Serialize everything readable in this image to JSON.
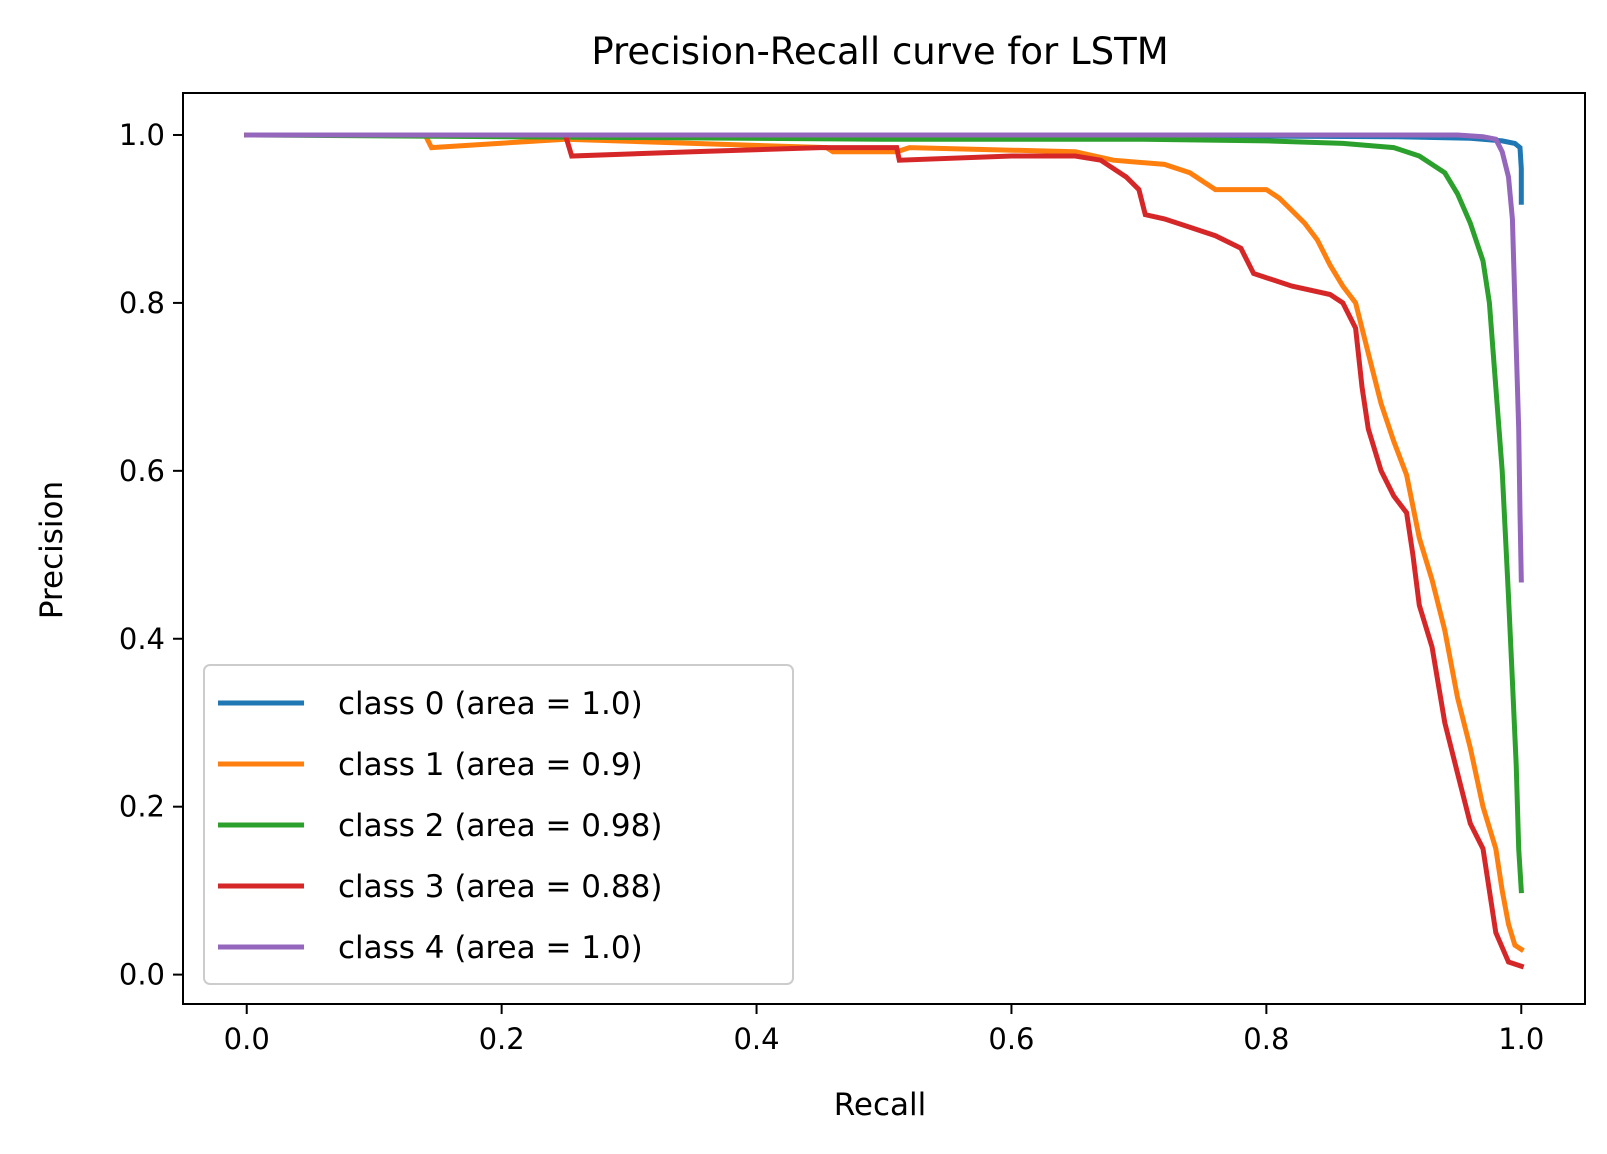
{
  "chart_data": {
    "type": "line",
    "title": "Precision-Recall curve for LSTM",
    "xlabel": "Recall",
    "ylabel": "Precision",
    "xlim": [
      -0.05,
      1.05
    ],
    "ylim": [
      -0.035,
      1.05
    ],
    "xticks": [
      0.0,
      0.2,
      0.4,
      0.6,
      0.8,
      1.0
    ],
    "xtick_labels": [
      "0.0",
      "0.2",
      "0.4",
      "0.6",
      "0.8",
      "1.0"
    ],
    "yticks": [
      0.0,
      0.2,
      0.4,
      0.6,
      0.8,
      1.0
    ],
    "ytick_labels": [
      "0.0",
      "0.2",
      "0.4",
      "0.6",
      "0.8",
      "1.0"
    ],
    "grid": false,
    "legend_position": "lower-left",
    "series": [
      {
        "name": "class 0 (area = 1.0)",
        "color": "#1f77b4",
        "points": [
          [
            0.0,
            1.0
          ],
          [
            0.6,
            1.0
          ],
          [
            0.9,
            0.998
          ],
          [
            0.96,
            0.996
          ],
          [
            0.985,
            0.993
          ],
          [
            0.995,
            0.99
          ],
          [
            0.999,
            0.985
          ],
          [
            1.0,
            0.96
          ],
          [
            1.0,
            0.92
          ]
        ]
      },
      {
        "name": "class 1 (area = 0.9)",
        "color": "#ff7f0e",
        "points": [
          [
            0.0,
            1.0
          ],
          [
            0.14,
            1.0
          ],
          [
            0.145,
            0.985
          ],
          [
            0.25,
            0.995
          ],
          [
            0.35,
            0.99
          ],
          [
            0.455,
            0.985
          ],
          [
            0.46,
            0.98
          ],
          [
            0.51,
            0.98
          ],
          [
            0.52,
            0.985
          ],
          [
            0.65,
            0.98
          ],
          [
            0.68,
            0.97
          ],
          [
            0.72,
            0.965
          ],
          [
            0.74,
            0.955
          ],
          [
            0.75,
            0.945
          ],
          [
            0.76,
            0.935
          ],
          [
            0.8,
            0.935
          ],
          [
            0.81,
            0.925
          ],
          [
            0.82,
            0.91
          ],
          [
            0.83,
            0.895
          ],
          [
            0.84,
            0.875
          ],
          [
            0.85,
            0.845
          ],
          [
            0.86,
            0.82
          ],
          [
            0.87,
            0.8
          ],
          [
            0.88,
            0.74
          ],
          [
            0.89,
            0.68
          ],
          [
            0.9,
            0.635
          ],
          [
            0.91,
            0.595
          ],
          [
            0.92,
            0.52
          ],
          [
            0.93,
            0.47
          ],
          [
            0.94,
            0.41
          ],
          [
            0.95,
            0.33
          ],
          [
            0.96,
            0.27
          ],
          [
            0.97,
            0.2
          ],
          [
            0.98,
            0.15
          ],
          [
            0.985,
            0.1
          ],
          [
            0.99,
            0.06
          ],
          [
            0.995,
            0.035
          ],
          [
            1.0,
            0.03
          ]
        ]
      },
      {
        "name": "class 2 (area = 0.98)",
        "color": "#2ca02c",
        "points": [
          [
            0.0,
            1.0
          ],
          [
            0.5,
            0.995
          ],
          [
            0.7,
            0.995
          ],
          [
            0.8,
            0.993
          ],
          [
            0.86,
            0.99
          ],
          [
            0.9,
            0.985
          ],
          [
            0.92,
            0.975
          ],
          [
            0.94,
            0.955
          ],
          [
            0.95,
            0.93
          ],
          [
            0.96,
            0.895
          ],
          [
            0.97,
            0.85
          ],
          [
            0.975,
            0.8
          ],
          [
            0.98,
            0.7
          ],
          [
            0.985,
            0.6
          ],
          [
            0.99,
            0.45
          ],
          [
            0.993,
            0.35
          ],
          [
            0.996,
            0.25
          ],
          [
            0.998,
            0.15
          ],
          [
            1.0,
            0.1
          ]
        ]
      },
      {
        "name": "class 3 (area = 0.88)",
        "color": "#d62728",
        "points": [
          [
            0.0,
            1.0
          ],
          [
            0.25,
            1.0
          ],
          [
            0.255,
            0.975
          ],
          [
            0.35,
            0.98
          ],
          [
            0.45,
            0.985
          ],
          [
            0.51,
            0.985
          ],
          [
            0.512,
            0.97
          ],
          [
            0.6,
            0.975
          ],
          [
            0.65,
            0.975
          ],
          [
            0.67,
            0.97
          ],
          [
            0.68,
            0.96
          ],
          [
            0.69,
            0.95
          ],
          [
            0.7,
            0.935
          ],
          [
            0.705,
            0.905
          ],
          [
            0.72,
            0.9
          ],
          [
            0.74,
            0.89
          ],
          [
            0.76,
            0.88
          ],
          [
            0.78,
            0.865
          ],
          [
            0.79,
            0.835
          ],
          [
            0.8,
            0.83
          ],
          [
            0.82,
            0.82
          ],
          [
            0.85,
            0.81
          ],
          [
            0.86,
            0.8
          ],
          [
            0.87,
            0.77
          ],
          [
            0.875,
            0.7
          ],
          [
            0.88,
            0.65
          ],
          [
            0.89,
            0.6
          ],
          [
            0.9,
            0.57
          ],
          [
            0.91,
            0.55
          ],
          [
            0.915,
            0.5
          ],
          [
            0.92,
            0.44
          ],
          [
            0.93,
            0.39
          ],
          [
            0.94,
            0.3
          ],
          [
            0.95,
            0.24
          ],
          [
            0.96,
            0.18
          ],
          [
            0.97,
            0.15
          ],
          [
            0.98,
            0.05
          ],
          [
            0.99,
            0.015
          ],
          [
            1.0,
            0.01
          ]
        ]
      },
      {
        "name": "class 4 (area = 1.0)",
        "color": "#9467bd",
        "points": [
          [
            0.0,
            1.0
          ],
          [
            0.8,
            1.0
          ],
          [
            0.95,
            1.0
          ],
          [
            0.97,
            0.998
          ],
          [
            0.98,
            0.995
          ],
          [
            0.985,
            0.98
          ],
          [
            0.99,
            0.95
          ],
          [
            0.993,
            0.9
          ],
          [
            0.995,
            0.8
          ],
          [
            0.998,
            0.65
          ],
          [
            0.999,
            0.55
          ],
          [
            1.0,
            0.47
          ]
        ]
      }
    ]
  }
}
